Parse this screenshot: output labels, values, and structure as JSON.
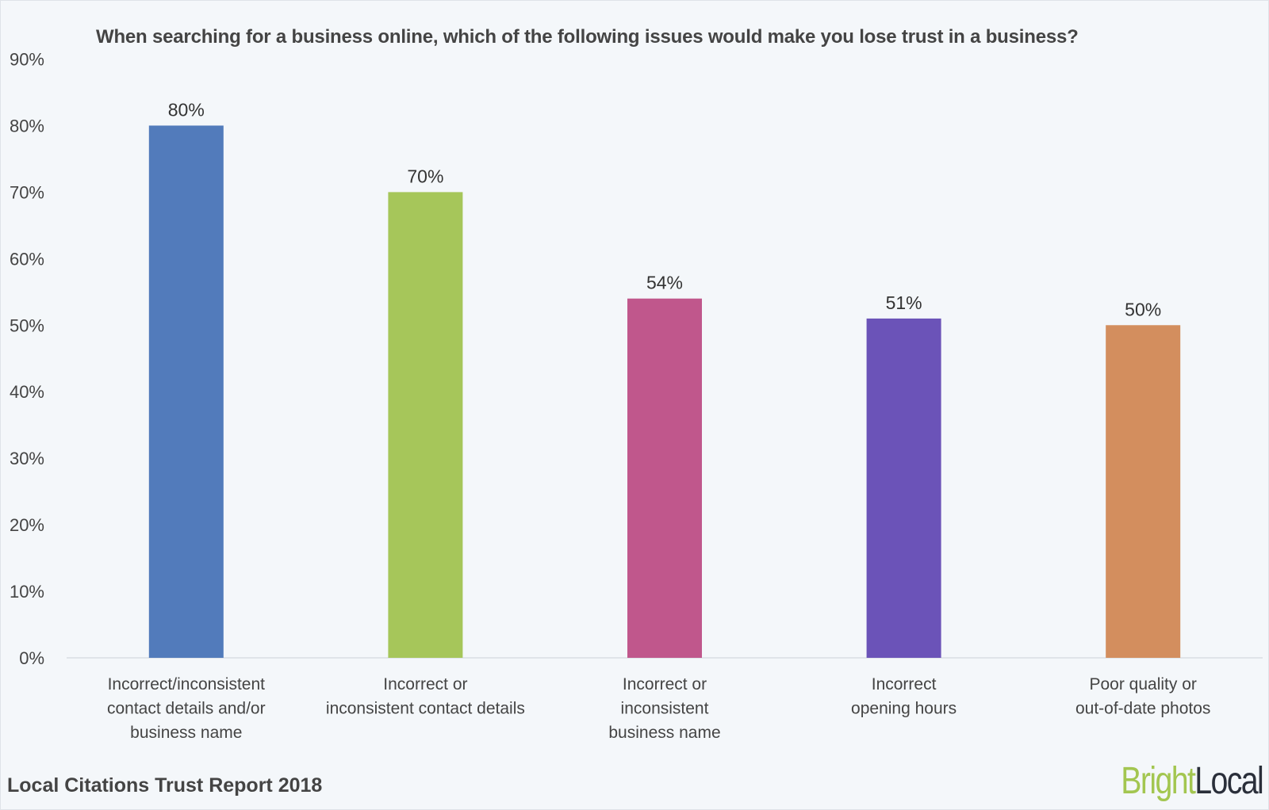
{
  "chart_data": {
    "type": "bar",
    "title": "When searching for a business online, which of the following issues would make you lose trust in a business?",
    "categories": [
      [
        "Incorrect/inconsistent",
        "contact details and/or",
        "business name"
      ],
      [
        "Incorrect or",
        "inconsistent contact details"
      ],
      [
        "Incorrect or",
        "inconsistent",
        "business name"
      ],
      [
        "Incorrect",
        "opening hours"
      ],
      [
        "Poor quality or",
        "out-of-date photos"
      ]
    ],
    "values": [
      80,
      70,
      54,
      51,
      50
    ],
    "data_labels": [
      "80%",
      "70%",
      "54%",
      "51%",
      "50%"
    ],
    "colors": [
      "#527bbb",
      "#a6c65a",
      "#c0578c",
      "#6b53b8",
      "#d38e5e"
    ],
    "ylim": [
      0,
      90
    ],
    "yticks": [
      "0%",
      "10%",
      "20%",
      "30%",
      "40%",
      "50%",
      "60%",
      "70%",
      "80%",
      "90%"
    ],
    "xlabel": "",
    "ylabel": "",
    "grid": false,
    "legend": "none"
  },
  "footer": "Local Citations Trust Report 2018",
  "logo": {
    "part1": "Bright",
    "part2": "Local"
  }
}
